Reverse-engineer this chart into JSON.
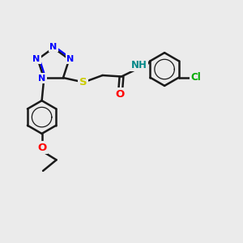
{
  "bg_color": "#ebebeb",
  "bond_color": "#1a1a1a",
  "bond_width": 1.8,
  "atom_colors": {
    "N": "#0000ff",
    "S": "#cccc00",
    "O": "#ff0000",
    "Cl": "#00aa00",
    "NH": "#008888",
    "C": "#1a1a1a"
  },
  "figsize": [
    3.0,
    3.0
  ],
  "dpi": 100
}
